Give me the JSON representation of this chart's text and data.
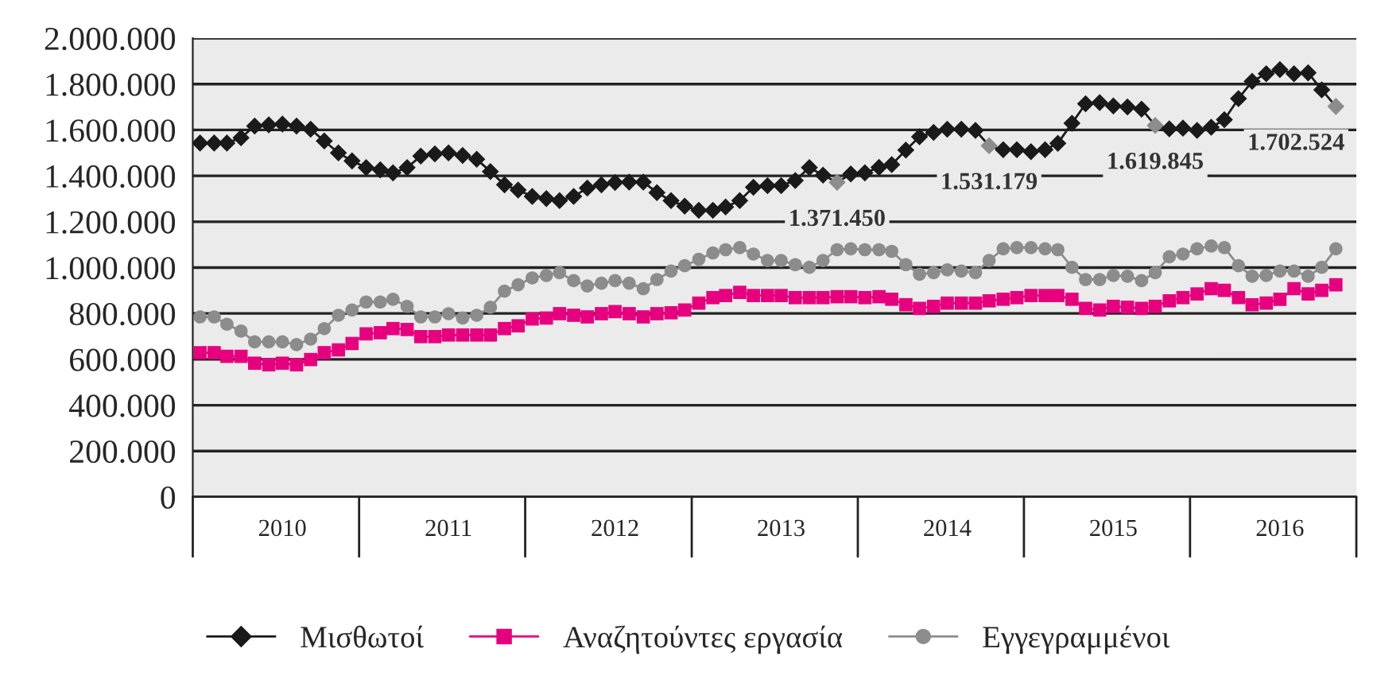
{
  "chart_data": {
    "type": "line",
    "x": [
      "2010-01",
      "2010-02",
      "2010-03",
      "2010-04",
      "2010-05",
      "2010-06",
      "2010-07",
      "2010-08",
      "2010-09",
      "2010-10",
      "2010-11",
      "2010-12",
      "2011-01",
      "2011-02",
      "2011-03",
      "2011-04",
      "2011-05",
      "2011-06",
      "2011-07",
      "2011-08",
      "2011-09",
      "2011-10",
      "2011-11",
      "2011-12",
      "2012-01",
      "2012-02",
      "2012-03",
      "2012-04",
      "2012-05",
      "2012-06",
      "2012-07",
      "2012-08",
      "2012-09",
      "2012-10",
      "2012-11",
      "2012-12",
      "2013-01",
      "2013-02",
      "2013-03",
      "2013-04",
      "2013-05",
      "2013-06",
      "2013-07",
      "2013-08",
      "2013-09",
      "2013-10",
      "2013-11",
      "2013-12",
      "2014-01",
      "2014-02",
      "2014-03",
      "2014-04",
      "2014-05",
      "2014-06",
      "2014-07",
      "2014-08",
      "2014-09",
      "2014-10",
      "2014-11",
      "2014-12",
      "2015-01",
      "2015-02",
      "2015-03",
      "2015-04",
      "2015-05",
      "2015-06",
      "2015-07",
      "2015-08",
      "2015-09",
      "2015-10",
      "2015-11",
      "2015-12",
      "2016-01",
      "2016-02",
      "2016-03",
      "2016-04",
      "2016-05",
      "2016-06",
      "2016-07",
      "2016-08",
      "2016-09",
      "2016-10",
      "2016-11"
    ],
    "series": [
      {
        "name": "Μισθωτοί",
        "color": "#1a1a1a",
        "marker": "diamond",
        "values": [
          1543000,
          1543000,
          1543000,
          1566000,
          1617000,
          1622000,
          1626000,
          1617000,
          1603000,
          1552000,
          1500000,
          1465000,
          1436000,
          1426000,
          1413000,
          1436000,
          1486000,
          1496000,
          1500000,
          1489000,
          1472000,
          1419000,
          1361000,
          1338000,
          1310000,
          1301000,
          1292000,
          1310000,
          1347000,
          1361000,
          1371000,
          1373000,
          1373000,
          1327000,
          1292000,
          1268000,
          1250000,
          1250000,
          1264000,
          1292000,
          1350000,
          1357000,
          1357000,
          1380000,
          1436000,
          1403000,
          1371450,
          1408000,
          1413000,
          1437000,
          1449000,
          1512000,
          1570000,
          1589000,
          1603000,
          1603000,
          1598000,
          1531179,
          1514000,
          1514000,
          1505000,
          1514000,
          1542000,
          1629000,
          1714000,
          1719000,
          1705000,
          1700000,
          1691000,
          1619845,
          1605000,
          1608000,
          1598000,
          1612000,
          1645000,
          1737000,
          1812000,
          1845000,
          1863000,
          1845000,
          1849000,
          1775000,
          1702524
        ],
        "colors": [
          "#1a1a1a",
          "#1a1a1a",
          "#1a1a1a",
          "#1a1a1a",
          "#1a1a1a",
          "#1a1a1a",
          "#1a1a1a",
          "#1a1a1a",
          "#1a1a1a",
          "#1a1a1a",
          "#1a1a1a",
          "#1a1a1a",
          "#1a1a1a",
          "#1a1a1a",
          "#1a1a1a",
          "#1a1a1a",
          "#1a1a1a",
          "#1a1a1a",
          "#1a1a1a",
          "#1a1a1a",
          "#1a1a1a",
          "#1a1a1a",
          "#1a1a1a",
          "#1a1a1a",
          "#1a1a1a",
          "#1a1a1a",
          "#1a1a1a",
          "#1a1a1a",
          "#1a1a1a",
          "#1a1a1a",
          "#1a1a1a",
          "#1a1a1a",
          "#1a1a1a",
          "#1a1a1a",
          "#1a1a1a",
          "#1a1a1a",
          "#1a1a1a",
          "#1a1a1a",
          "#1a1a1a",
          "#1a1a1a",
          "#1a1a1a",
          "#1a1a1a",
          "#1a1a1a",
          "#1a1a1a",
          "#1a1a1a",
          "#1a1a1a",
          "#8c8c8c",
          "#1a1a1a",
          "#1a1a1a",
          "#1a1a1a",
          "#1a1a1a",
          "#1a1a1a",
          "#1a1a1a",
          "#1a1a1a",
          "#1a1a1a",
          "#1a1a1a",
          "#1a1a1a",
          "#8c8c8c",
          "#1a1a1a",
          "#1a1a1a",
          "#1a1a1a",
          "#1a1a1a",
          "#1a1a1a",
          "#1a1a1a",
          "#1a1a1a",
          "#1a1a1a",
          "#1a1a1a",
          "#1a1a1a",
          "#1a1a1a",
          "#8c8c8c",
          "#1a1a1a",
          "#1a1a1a",
          "#1a1a1a",
          "#1a1a1a",
          "#1a1a1a",
          "#1a1a1a",
          "#1a1a1a",
          "#1a1a1a",
          "#1a1a1a",
          "#1a1a1a",
          "#1a1a1a",
          "#1a1a1a",
          "#8c8c8c"
        ]
      },
      {
        "name": "Αναζητούντες εργασία",
        "color": "#e6007e",
        "marker": "square",
        "values": [
          629000,
          629000,
          613000,
          613000,
          583000,
          576000,
          583000,
          576000,
          599000,
          629000,
          641000,
          669000,
          711000,
          716000,
          734000,
          730000,
          699000,
          699000,
          706000,
          706000,
          706000,
          706000,
          734000,
          746000,
          776000,
          780000,
          799000,
          792000,
          785000,
          799000,
          808000,
          799000,
          785000,
          799000,
          803000,
          815000,
          845000,
          869000,
          878000,
          892000,
          878000,
          878000,
          878000,
          869000,
          869000,
          869000,
          873000,
          873000,
          869000,
          873000,
          862000,
          838000,
          822000,
          831000,
          845000,
          845000,
          845000,
          855000,
          862000,
          869000,
          878000,
          878000,
          878000,
          862000,
          822000,
          815000,
          831000,
          827000,
          822000,
          831000,
          855000,
          869000,
          885000,
          908000,
          901000,
          869000,
          838000,
          845000,
          862000,
          908000,
          885000,
          901000,
          925000
        ]
      },
      {
        "name": "Εγγεγραμμένοι",
        "color": "#8c8c8c",
        "marker": "circle",
        "values": [
          785000,
          785000,
          753000,
          723000,
          676000,
          676000,
          676000,
          664000,
          688000,
          734000,
          792000,
          815000,
          850000,
          850000,
          862000,
          831000,
          785000,
          785000,
          799000,
          780000,
          792000,
          827000,
          897000,
          925000,
          955000,
          966000,
          978000,
          943000,
          920000,
          932000,
          943000,
          932000,
          908000,
          948000,
          985000,
          1008000,
          1036000,
          1064000,
          1078000,
          1087000,
          1059000,
          1031000,
          1031000,
          1013000,
          1001000,
          1031000,
          1078000,
          1082000,
          1078000,
          1078000,
          1071000,
          1013000,
          971000,
          978000,
          990000,
          985000,
          978000,
          1031000,
          1082000,
          1087000,
          1087000,
          1082000,
          1078000,
          1001000,
          948000,
          948000,
          966000,
          962000,
          943000,
          978000,
          1047000,
          1059000,
          1082000,
          1094000,
          1087000,
          1008000,
          962000,
          966000,
          985000,
          985000,
          962000,
          1001000,
          1082000
        ]
      }
    ],
    "xlim": [
      "2009-12-16",
      "2016-12-16"
    ],
    "xticks": [
      {
        "value": "2010-07-01",
        "label": "2010"
      },
      {
        "value": "2011-07-01",
        "label": "2011"
      },
      {
        "value": "2012-07-01",
        "label": "2012"
      },
      {
        "value": "2013-07-01",
        "label": "2013"
      },
      {
        "value": "2014-07-01",
        "label": "2014"
      },
      {
        "value": "2015-07-01",
        "label": "2015"
      },
      {
        "value": "2016-07-01",
        "label": "2016"
      }
    ],
    "ylim": [
      0,
      2000000
    ],
    "yticks": [
      0,
      {
        "value": 200000,
        "label": "200.000"
      },
      {
        "value": 400000,
        "label": "400.000"
      },
      {
        "value": 600000,
        "label": "600.000"
      },
      {
        "value": 800000,
        "label": "800.000"
      },
      {
        "value": 1000000,
        "label": "1.000.000"
      },
      {
        "value": 1200000,
        "label": "1.200.000"
      },
      {
        "value": 1400000,
        "label": "1.400.000"
      },
      {
        "value": 1600000,
        "label": "1.600.000"
      },
      {
        "value": 1800000,
        "label": "1.800.000"
      },
      {
        "value": 2000000,
        "label": "2.000.000"
      }
    ],
    "annotations": [
      {
        "text": "1.371.450",
        "x": "2013-11",
        "y": 1371450
      },
      {
        "text": "1.531.179",
        "x": "2014-10",
        "y": 1531179
      },
      {
        "text": "1.619.845",
        "x": "2015-10",
        "y": 1619845
      },
      {
        "text": "1.702.524",
        "x": "2016-11",
        "y": 1702524
      }
    ],
    "grid": "y",
    "legend": "bottom"
  }
}
